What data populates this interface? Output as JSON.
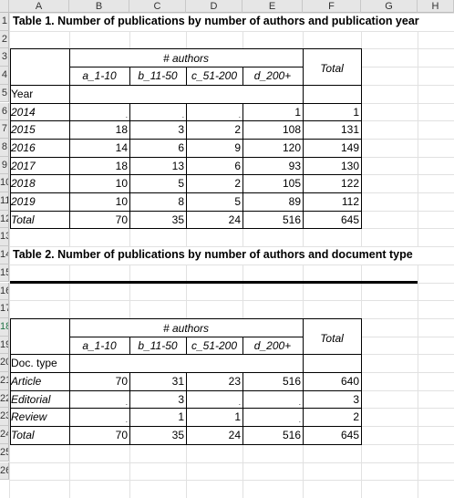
{
  "columns": [
    "A",
    "B",
    "C",
    "D",
    "E",
    "F",
    "G",
    "H"
  ],
  "row_numbers": [
    "1",
    "2",
    "3",
    "4",
    "5",
    "6",
    "7",
    "8",
    "9",
    "10",
    "11",
    "12",
    "13",
    "14",
    "15",
    "16",
    "17",
    "18",
    "19",
    "20",
    "21",
    "22",
    "23",
    "24",
    "25",
    "26"
  ],
  "table1": {
    "title": "Table 1. Number of publications by number of authors and publication year",
    "group_header": "# authors",
    "col_headers": [
      "a_1-10",
      "b_11-50",
      "c_51-200",
      "d_200+"
    ],
    "total_header": "Total",
    "row_label_header": "Year",
    "rows": [
      {
        "label": "2014",
        "values": [
          ".",
          ".",
          ".",
          "1"
        ],
        "total": "1"
      },
      {
        "label": "2015",
        "values": [
          "18",
          "3",
          "2",
          "108"
        ],
        "total": "131"
      },
      {
        "label": "2016",
        "values": [
          "14",
          "6",
          "9",
          "120"
        ],
        "total": "149"
      },
      {
        "label": "2017",
        "values": [
          "18",
          "13",
          "6",
          "93"
        ],
        "total": "130"
      },
      {
        "label": "2018",
        "values": [
          "10",
          "5",
          "2",
          "105"
        ],
        "total": "122"
      },
      {
        "label": "2019",
        "values": [
          "10",
          "8",
          "5",
          "89"
        ],
        "total": "112"
      },
      {
        "label": "Total",
        "values": [
          "70",
          "35",
          "24",
          "516"
        ],
        "total": "645"
      }
    ]
  },
  "table2": {
    "title": "Table 2. Number of publications by number of authors and document type",
    "group_header": "# authors",
    "col_headers": [
      "a_1-10",
      "b_11-50",
      "c_51-200",
      "d_200+"
    ],
    "total_header": "Total",
    "row_label_header": "Doc. type",
    "rows": [
      {
        "label": "Article",
        "values": [
          "70",
          "31",
          "23",
          "516"
        ],
        "total": "640"
      },
      {
        "label": "Editorial",
        "values": [
          ".",
          "3",
          ".",
          "."
        ],
        "total": "3"
      },
      {
        "label": "Review",
        "values": [
          ".",
          "1",
          "1",
          "."
        ],
        "total": "2"
      },
      {
        "label": "Total",
        "values": [
          "70",
          "35",
          "24",
          "516"
        ],
        "total": "645"
      }
    ]
  }
}
